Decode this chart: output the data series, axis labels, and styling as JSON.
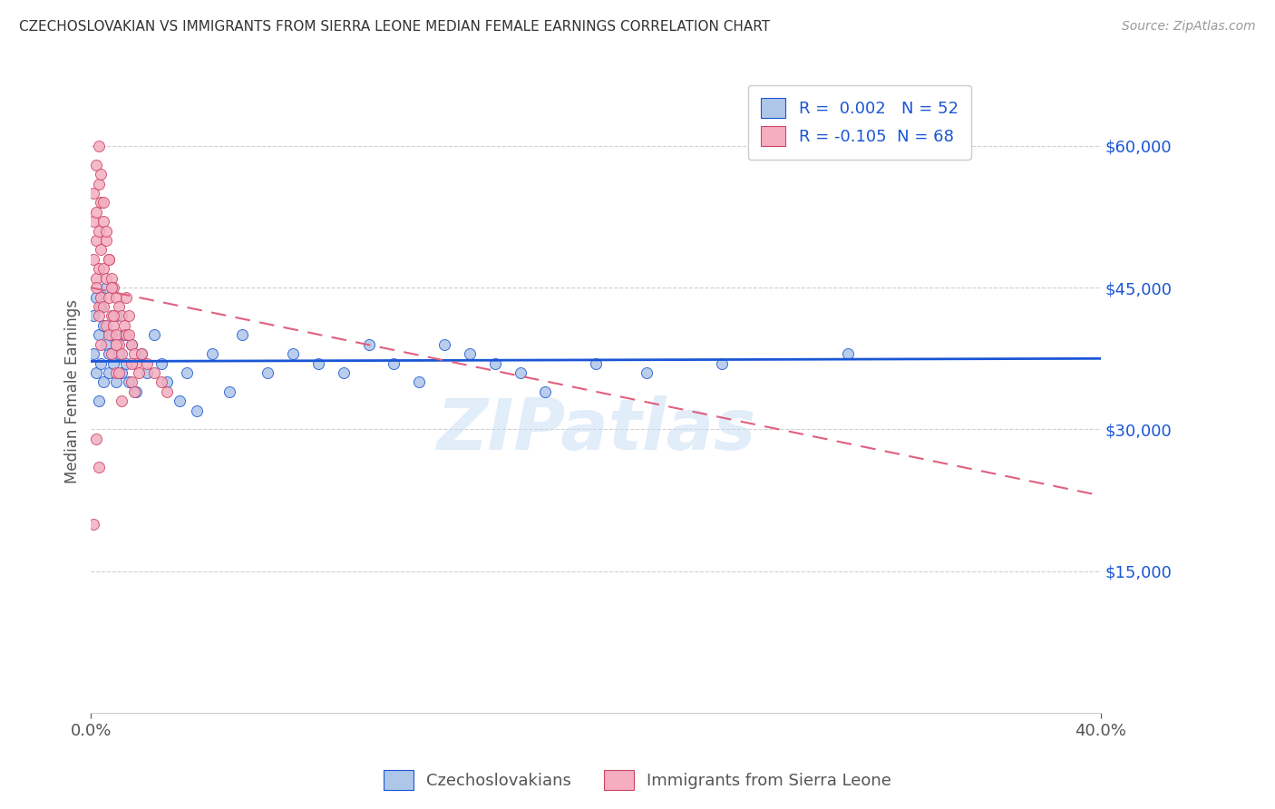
{
  "title": "CZECHOSLOVAKIAN VS IMMIGRANTS FROM SIERRA LEONE MEDIAN FEMALE EARNINGS CORRELATION CHART",
  "source": "Source: ZipAtlas.com",
  "ylabel": "Median Female Earnings",
  "yticks": [
    0,
    15000,
    30000,
    45000,
    60000
  ],
  "ytick_labels": [
    "",
    "$15,000",
    "$30,000",
    "$45,000",
    "$60,000"
  ],
  "xmin": 0.0,
  "xmax": 0.4,
  "ymin": 0,
  "ymax": 68000,
  "blue_R": 0.002,
  "blue_N": 52,
  "pink_R": -0.105,
  "pink_N": 68,
  "blue_color": "#aec6e8",
  "pink_color": "#f4aec0",
  "blue_line_color": "#1a56d6",
  "pink_line_color": "#e06080",
  "pink_edge_color": "#cc4466",
  "watermark": "ZIPatlas",
  "legend_label_blue": "Czechoslovakians",
  "legend_label_pink": "Immigrants from Sierra Leone",
  "blue_trend_y0": 37200,
  "blue_trend_y1": 37500,
  "pink_trend_y0": 45000,
  "pink_trend_y1": 23000,
  "blue_scatter_x": [
    0.001,
    0.001,
    0.002,
    0.002,
    0.003,
    0.003,
    0.004,
    0.004,
    0.005,
    0.005,
    0.006,
    0.006,
    0.007,
    0.007,
    0.008,
    0.009,
    0.01,
    0.01,
    0.011,
    0.012,
    0.013,
    0.014,
    0.015,
    0.016,
    0.018,
    0.02,
    0.022,
    0.025,
    0.028,
    0.03,
    0.035,
    0.038,
    0.042,
    0.048,
    0.055,
    0.06,
    0.07,
    0.08,
    0.09,
    0.1,
    0.11,
    0.12,
    0.13,
    0.15,
    0.17,
    0.2,
    0.22,
    0.18,
    0.16,
    0.14,
    0.25,
    0.3
  ],
  "blue_scatter_y": [
    42000,
    38000,
    44000,
    36000,
    40000,
    33000,
    43000,
    37000,
    41000,
    35000,
    39000,
    45000,
    38000,
    36000,
    40000,
    37000,
    35000,
    42000,
    38000,
    36000,
    40000,
    37000,
    35000,
    39000,
    34000,
    38000,
    36000,
    40000,
    37000,
    35000,
    33000,
    36000,
    32000,
    38000,
    34000,
    40000,
    36000,
    38000,
    37000,
    36000,
    39000,
    37000,
    35000,
    38000,
    36000,
    37000,
    36000,
    34000,
    37000,
    39000,
    37000,
    38000
  ],
  "pink_scatter_x": [
    0.001,
    0.001,
    0.001,
    0.002,
    0.002,
    0.002,
    0.002,
    0.003,
    0.003,
    0.003,
    0.003,
    0.004,
    0.004,
    0.004,
    0.005,
    0.005,
    0.005,
    0.006,
    0.006,
    0.006,
    0.007,
    0.007,
    0.007,
    0.008,
    0.008,
    0.008,
    0.009,
    0.009,
    0.01,
    0.01,
    0.01,
    0.011,
    0.011,
    0.012,
    0.012,
    0.013,
    0.014,
    0.015,
    0.016,
    0.016,
    0.017,
    0.018,
    0.019,
    0.02,
    0.022,
    0.025,
    0.028,
    0.03,
    0.003,
    0.004,
    0.005,
    0.006,
    0.007,
    0.008,
    0.009,
    0.01,
    0.011,
    0.012,
    0.014,
    0.015,
    0.016,
    0.017,
    0.002,
    0.003,
    0.004,
    0.002,
    0.003,
    0.001
  ],
  "pink_scatter_y": [
    55000,
    52000,
    48000,
    58000,
    53000,
    50000,
    46000,
    56000,
    51000,
    47000,
    43000,
    54000,
    49000,
    44000,
    52000,
    47000,
    43000,
    50000,
    46000,
    41000,
    48000,
    44000,
    40000,
    46000,
    42000,
    38000,
    45000,
    41000,
    44000,
    40000,
    36000,
    43000,
    39000,
    42000,
    38000,
    41000,
    40000,
    42000,
    39000,
    35000,
    38000,
    37000,
    36000,
    38000,
    37000,
    36000,
    35000,
    34000,
    60000,
    57000,
    54000,
    51000,
    48000,
    45000,
    42000,
    39000,
    36000,
    33000,
    44000,
    40000,
    37000,
    34000,
    45000,
    42000,
    39000,
    29000,
    26000,
    20000
  ]
}
